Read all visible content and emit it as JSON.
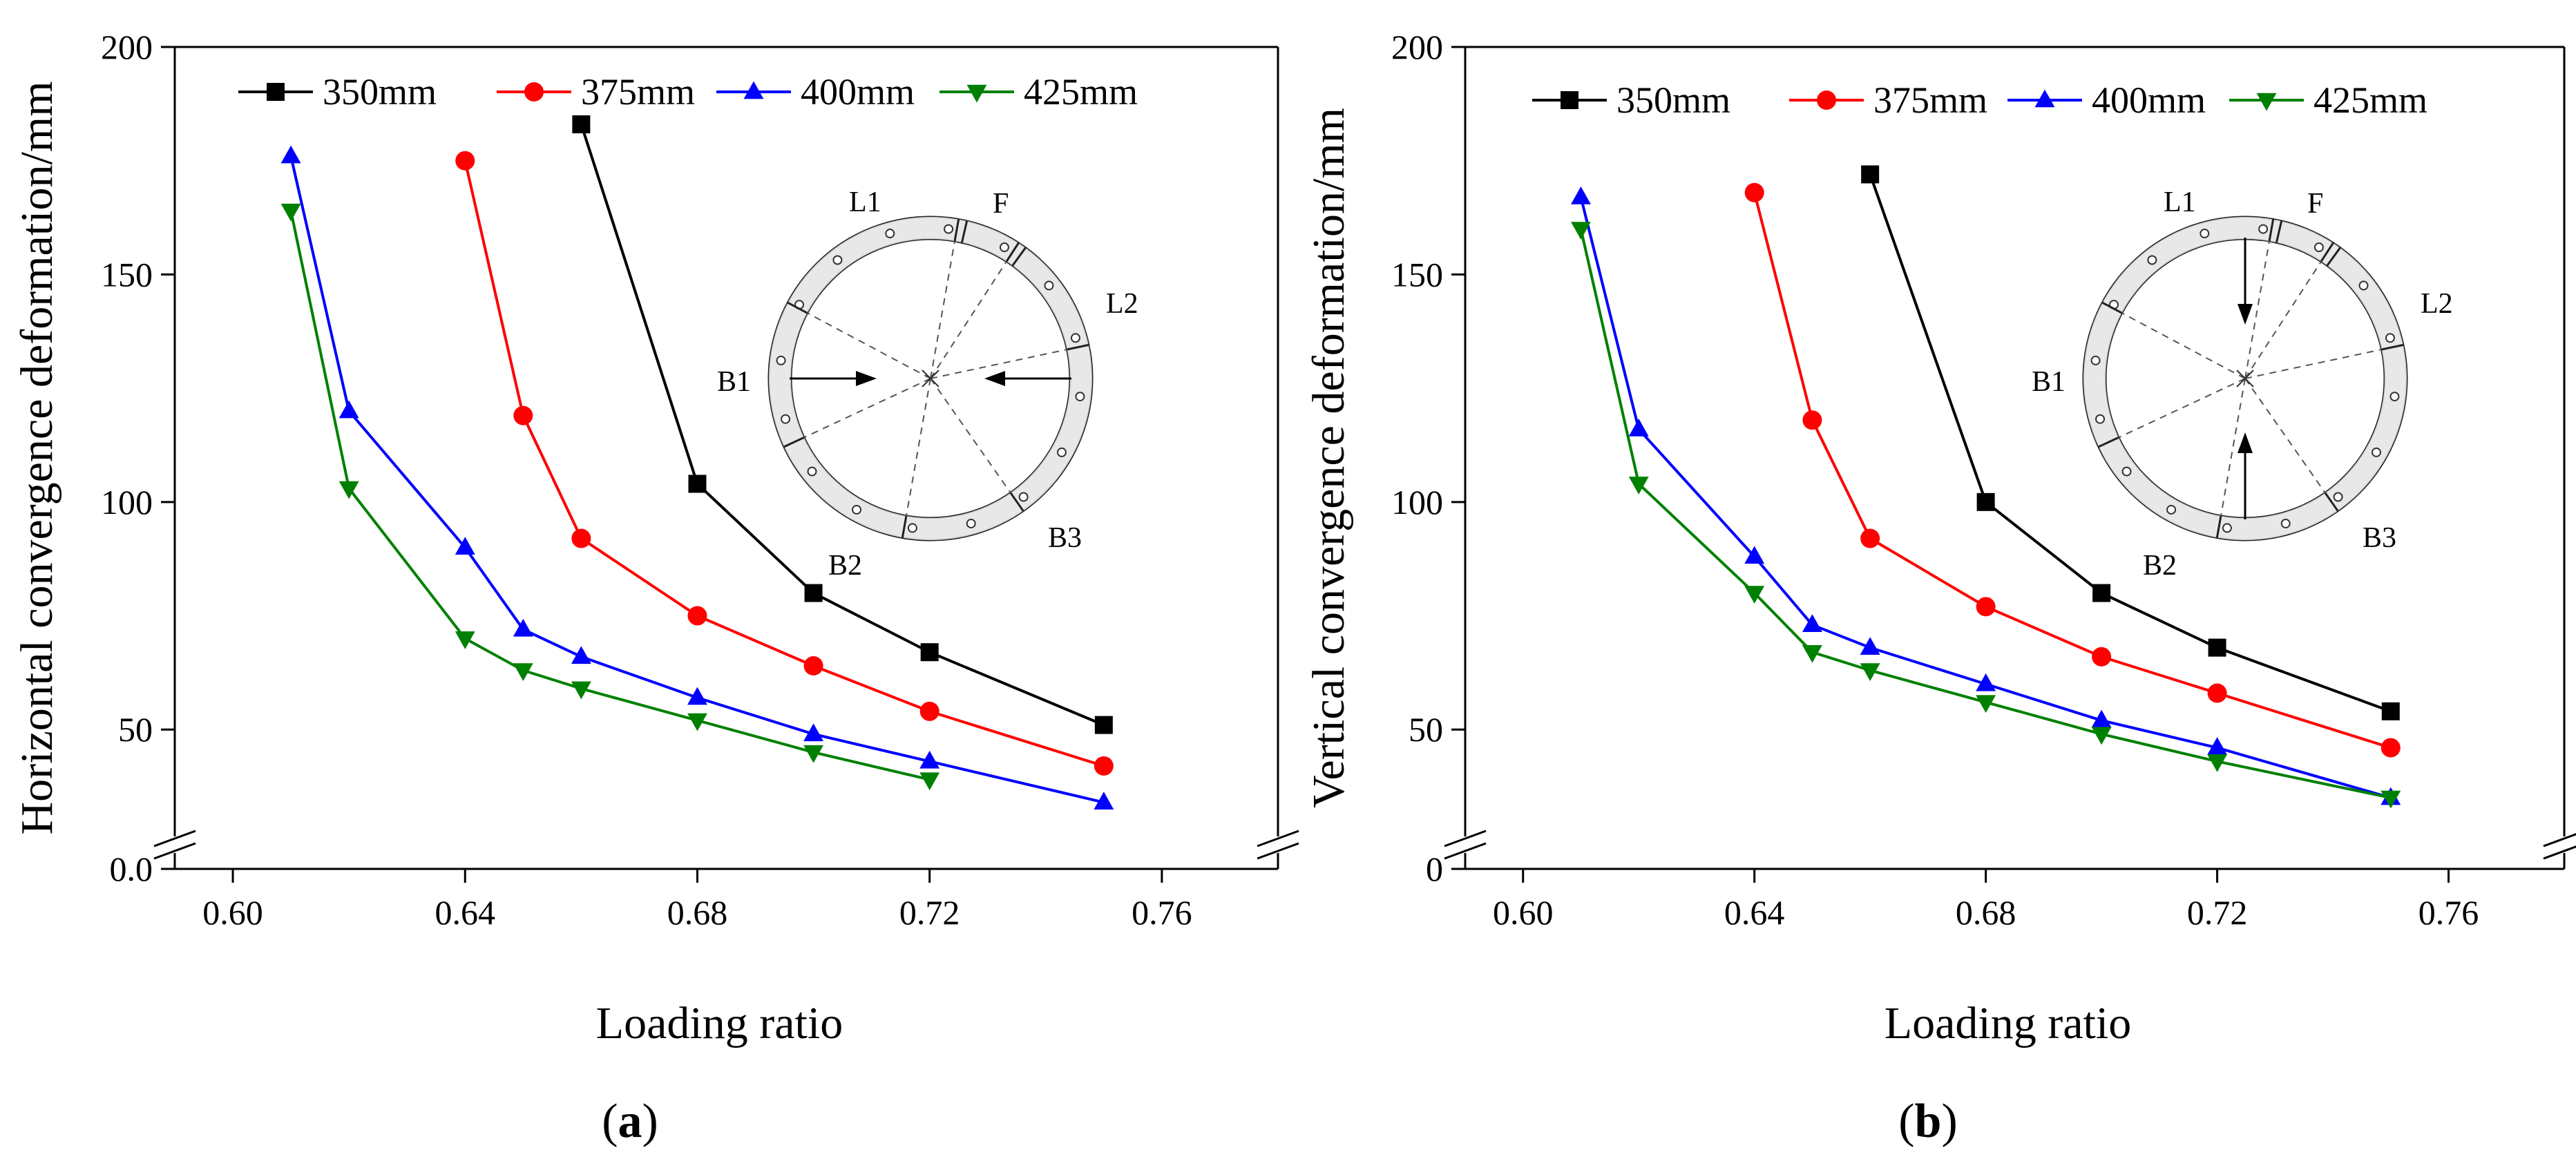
{
  "chart_data": [
    {
      "panel": "a",
      "caption_open": "(",
      "caption_letter": "a",
      "caption_close": ")",
      "type": "line",
      "xlabel": "Loading ratio",
      "ylabel": "Horizontal convergence deformation/mm",
      "xlim": [
        0.59,
        0.78
      ],
      "ylim": [
        0,
        200
      ],
      "xticks": [
        0.6,
        0.64,
        0.68,
        0.72,
        0.76
      ],
      "xtick_labels": [
        "0.60",
        "0.64",
        "0.68",
        "0.72",
        "0.76"
      ],
      "yticks": [
        50,
        100,
        150,
        200
      ],
      "ytick_labels": [
        "50",
        "100",
        "150",
        "200"
      ],
      "y_break_label": "0.0",
      "series": [
        {
          "name": "350mm",
          "color": "#000000",
          "marker": "square",
          "x": [
            0.66,
            0.68,
            0.7,
            0.72,
            0.75
          ],
          "y": [
            183,
            104,
            80,
            67,
            51
          ]
        },
        {
          "name": "375mm",
          "color": "#ff0000",
          "marker": "circle",
          "x": [
            0.64,
            0.65,
            0.66,
            0.68,
            0.7,
            0.72,
            0.75
          ],
          "y": [
            175,
            119,
            92,
            75,
            64,
            54,
            42
          ]
        },
        {
          "name": "400mm",
          "color": "#0000ff",
          "marker": "triangle-up",
          "x": [
            0.61,
            0.62,
            0.64,
            0.65,
            0.66,
            0.68,
            0.7,
            0.72,
            0.75
          ],
          "y": [
            176,
            120,
            90,
            72,
            66,
            57,
            49,
            43,
            34
          ]
        },
        {
          "name": "425mm",
          "color": "#008000",
          "marker": "triangle-down",
          "x": [
            0.61,
            0.62,
            0.64,
            0.65,
            0.66,
            0.68,
            0.7,
            0.72
          ],
          "y": [
            164,
            103,
            70,
            63,
            59,
            52,
            45,
            39
          ]
        }
      ],
      "inset": {
        "labels": [
          "L1",
          "F",
          "L2",
          "B1",
          "B2",
          "B3"
        ],
        "arrow_direction": "horizontal"
      }
    },
    {
      "panel": "b",
      "caption_open": "(",
      "caption_letter": "b",
      "caption_close": ")",
      "type": "line",
      "xlabel": "Loading ratio",
      "ylabel": "Vertical convergence deformation/mm",
      "xlim": [
        0.59,
        0.78
      ],
      "ylim": [
        0,
        200
      ],
      "xticks": [
        0.6,
        0.64,
        0.68,
        0.72,
        0.76
      ],
      "xtick_labels": [
        "0.60",
        "0.64",
        "0.68",
        "0.72",
        "0.76"
      ],
      "yticks": [
        50,
        100,
        150,
        200
      ],
      "ytick_labels": [
        "50",
        "100",
        "150",
        "200"
      ],
      "y_break_label": "0",
      "series": [
        {
          "name": "350mm",
          "color": "#000000",
          "marker": "square",
          "x": [
            0.66,
            0.68,
            0.7,
            0.72,
            0.75
          ],
          "y": [
            172,
            100,
            80,
            68,
            54
          ]
        },
        {
          "name": "375mm",
          "color": "#ff0000",
          "marker": "circle",
          "x": [
            0.64,
            0.65,
            0.66,
            0.68,
            0.7,
            0.72,
            0.75
          ],
          "y": [
            168,
            118,
            92,
            77,
            66,
            58,
            46
          ]
        },
        {
          "name": "400mm",
          "color": "#0000ff",
          "marker": "triangle-up",
          "x": [
            0.61,
            0.62,
            0.64,
            0.65,
            0.66,
            0.68,
            0.7,
            0.72,
            0.75
          ],
          "y": [
            167,
            116,
            88,
            73,
            68,
            60,
            52,
            46,
            35
          ]
        },
        {
          "name": "425mm",
          "color": "#008000",
          "marker": "triangle-down",
          "x": [
            0.61,
            0.62,
            0.64,
            0.65,
            0.66,
            0.68,
            0.7,
            0.72,
            0.75
          ],
          "y": [
            160,
            104,
            80,
            67,
            63,
            56,
            49,
            43,
            35
          ]
        }
      ],
      "inset": {
        "labels": [
          "L1",
          "F",
          "L2",
          "B1",
          "B2",
          "B3"
        ],
        "arrow_direction": "vertical"
      }
    }
  ]
}
